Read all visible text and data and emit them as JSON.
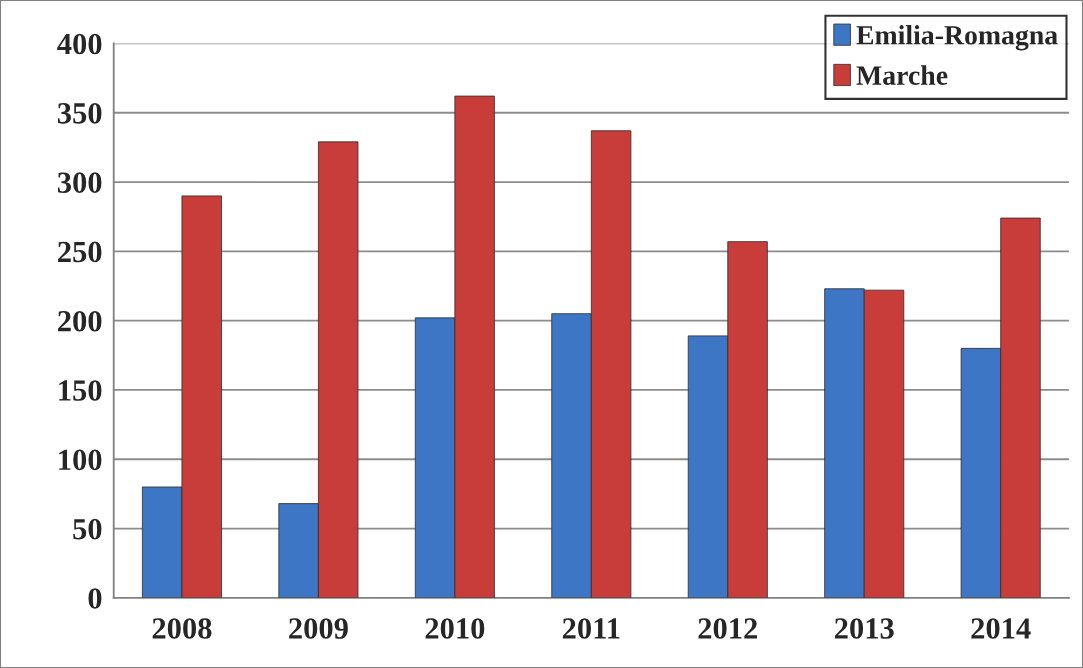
{
  "chart_data": {
    "type": "bar",
    "categories": [
      "2008",
      "2009",
      "2010",
      "2011",
      "2012",
      "2013",
      "2014"
    ],
    "series": [
      {
        "name": "Emilia-Romagna",
        "color": "#3d76c4",
        "values": [
          80,
          68,
          202,
          205,
          189,
          223,
          180
        ]
      },
      {
        "name": "Marche",
        "color": "#c83c3a",
        "values": [
          290,
          329,
          362,
          337,
          257,
          222,
          274
        ]
      }
    ],
    "ylim": [
      0,
      400
    ],
    "yticks": [
      0,
      50,
      100,
      150,
      200,
      250,
      300,
      350,
      400
    ],
    "grid": "y",
    "legend": "top right"
  }
}
